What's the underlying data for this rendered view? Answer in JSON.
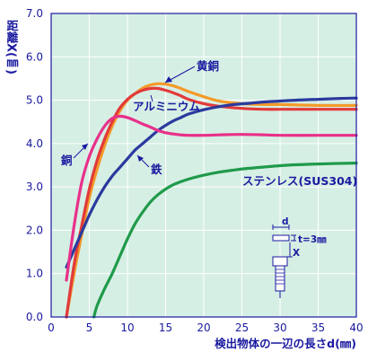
{
  "chart_data": {
    "type": "line",
    "xlabel": "検出物体の一辺の長さd(㎜)",
    "ylabel": "距離X(㎜)",
    "xlim": [
      0,
      40
    ],
    "ylim": [
      0,
      7
    ],
    "xticks": [
      "0",
      "5",
      "10",
      "15",
      "20",
      "25",
      "30",
      "35",
      "40"
    ],
    "yticks": [
      "0.0",
      "1.0",
      "2.0",
      "3.0",
      "4.0",
      "5.0",
      "6.0",
      "7.0"
    ],
    "grid": true,
    "legend": "none",
    "series": [
      {
        "name": "黄銅",
        "color": "#f39a2a",
        "x": [
          2,
          3,
          4,
          5,
          6,
          7,
          8,
          9,
          10,
          11,
          12,
          13,
          14,
          15,
          16,
          17,
          18,
          20,
          22,
          25,
          28,
          30,
          35,
          40
        ],
        "y": [
          0.0,
          1.0,
          1.9,
          2.75,
          3.4,
          3.95,
          4.4,
          4.75,
          5.0,
          5.15,
          5.28,
          5.35,
          5.38,
          5.37,
          5.33,
          5.27,
          5.2,
          5.08,
          4.98,
          4.92,
          4.9,
          4.9,
          4.88,
          4.88
        ]
      },
      {
        "name": "アルミニウム",
        "color": "#e23a3a",
        "x": [
          2,
          3,
          4,
          5,
          6,
          7,
          8,
          9,
          10,
          11,
          12,
          13,
          14,
          15,
          16,
          17,
          18,
          20,
          22,
          25,
          28,
          30,
          35,
          40
        ],
        "y": [
          0.0,
          1.2,
          2.1,
          2.95,
          3.6,
          4.1,
          4.5,
          4.82,
          5.02,
          5.15,
          5.23,
          5.27,
          5.27,
          5.23,
          5.17,
          5.1,
          5.02,
          4.92,
          4.86,
          4.81,
          4.79,
          4.79,
          4.79,
          4.79
        ]
      },
      {
        "name": "鉄",
        "color": "#2b3a9e",
        "x": [
          2,
          3,
          4,
          5,
          6,
          7,
          8,
          9,
          10,
          11,
          12,
          13,
          14,
          15,
          16,
          17,
          18,
          20,
          22,
          24,
          26,
          28,
          30,
          32,
          35,
          38,
          40
        ],
        "y": [
          1.15,
          1.55,
          1.95,
          2.35,
          2.7,
          3.0,
          3.25,
          3.45,
          3.65,
          3.85,
          4.0,
          4.15,
          4.3,
          4.42,
          4.52,
          4.6,
          4.68,
          4.78,
          4.85,
          4.9,
          4.93,
          4.96,
          4.98,
          5.0,
          5.02,
          5.04,
          5.05
        ]
      },
      {
        "name": "銅",
        "color": "#e8308a",
        "x": [
          2,
          3,
          4,
          5,
          6,
          7,
          8,
          9,
          10,
          11,
          12,
          13,
          14,
          15,
          16,
          17,
          18,
          20,
          22,
          25,
          28,
          30,
          35,
          40
        ],
        "y": [
          0.85,
          2.1,
          3.1,
          3.7,
          4.1,
          4.4,
          4.58,
          4.63,
          4.6,
          4.53,
          4.45,
          4.38,
          4.3,
          4.25,
          4.22,
          4.2,
          4.19,
          4.19,
          4.2,
          4.21,
          4.2,
          4.19,
          4.19,
          4.19
        ]
      },
      {
        "name": "ステンレス(SUS304)",
        "color": "#1f9a4a",
        "x": [
          5.6,
          6,
          7,
          8,
          9,
          10,
          11,
          12,
          13,
          14,
          15,
          16,
          17,
          18,
          20,
          22,
          24,
          26,
          28,
          30,
          32,
          35,
          40
        ],
        "y": [
          0.0,
          0.25,
          0.65,
          1.0,
          1.4,
          1.8,
          2.15,
          2.42,
          2.65,
          2.82,
          2.95,
          3.05,
          3.12,
          3.18,
          3.27,
          3.34,
          3.39,
          3.43,
          3.46,
          3.49,
          3.51,
          3.53,
          3.55
        ]
      }
    ],
    "annotations": [
      {
        "text": "黄銅",
        "series": "黄銅"
      },
      {
        "text": "アルミニウム",
        "series": "アルミニウム"
      },
      {
        "text": "銅",
        "series": "銅"
      },
      {
        "text": "鉄",
        "series": "鉄"
      },
      {
        "text": "ステンレス(SUS304)",
        "series": "ステンレス(SUS304)"
      }
    ],
    "diagram": {
      "d_label": "d",
      "t_label": "t=3㎜",
      "x_label": "X"
    }
  }
}
